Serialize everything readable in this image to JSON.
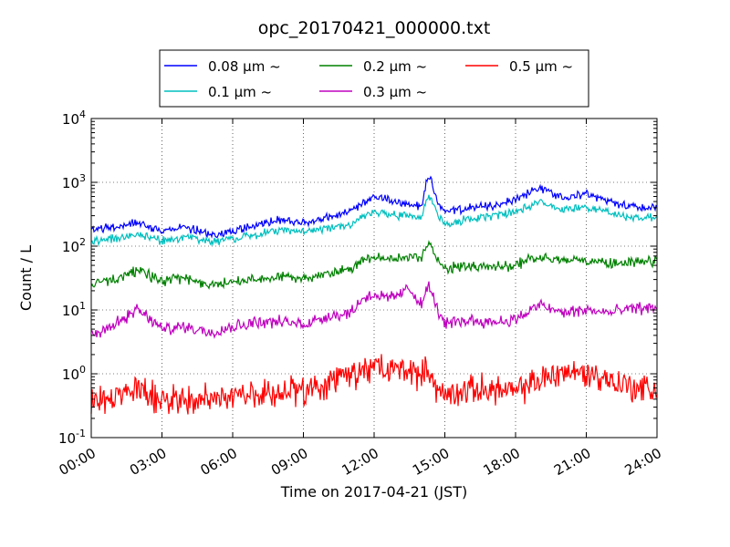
{
  "chart_data": {
    "type": "line",
    "title": "opc_20170421_000000.txt",
    "xlabel": "Time on 2017-04-21 (JST)",
    "ylabel": "Count / L",
    "y_scale": "log",
    "ylim_exponents": [
      -1,
      4
    ],
    "grid": true,
    "legend_position": "top-center",
    "x_ticks": [
      "00:00",
      "03:00",
      "06:00",
      "09:00",
      "12:00",
      "15:00",
      "18:00",
      "21:00",
      "24:00"
    ],
    "y_ticks": [
      {
        "base": "10",
        "exp": "-1"
      },
      {
        "base": "10",
        "exp": "0"
      },
      {
        "base": "10",
        "exp": "1"
      },
      {
        "base": "10",
        "exp": "2"
      },
      {
        "base": "10",
        "exp": "3"
      },
      {
        "base": "10",
        "exp": "4"
      }
    ],
    "x_hours": [
      0,
      1,
      2,
      3,
      4,
      5,
      6,
      7,
      8,
      9,
      10,
      11,
      11.5,
      12,
      12.5,
      13,
      13.5,
      14,
      14.3,
      14.7,
      15,
      16,
      17,
      18,
      19,
      20,
      21,
      22,
      23,
      24
    ],
    "series": [
      {
        "name": "0.08 μm ~",
        "color": "#0000ff",
        "noise": 0.04,
        "values": [
          180,
          200,
          240,
          170,
          200,
          150,
          170,
          210,
          260,
          230,
          280,
          350,
          450,
          600,
          550,
          480,
          450,
          420,
          1400,
          500,
          330,
          400,
          420,
          550,
          820,
          600,
          650,
          500,
          420,
          400
        ]
      },
      {
        "name": "0.1 μm ~",
        "color": "#00bfbf",
        "noise": 0.04,
        "values": [
          120,
          130,
          155,
          120,
          140,
          120,
          130,
          150,
          180,
          170,
          190,
          220,
          280,
          350,
          320,
          300,
          300,
          290,
          650,
          320,
          220,
          270,
          290,
          340,
          500,
          380,
          420,
          330,
          280,
          270
        ]
      },
      {
        "name": "0.2 μm ~",
        "color": "#008000",
        "noise": 0.05,
        "values": [
          25,
          30,
          42,
          28,
          32,
          24,
          28,
          30,
          33,
          32,
          36,
          45,
          62,
          70,
          60,
          65,
          70,
          65,
          110,
          60,
          45,
          50,
          48,
          50,
          70,
          58,
          62,
          55,
          56,
          57
        ]
      },
      {
        "name": "0.3 μm ~",
        "color": "#bf00bf",
        "noise": 0.06,
        "values": [
          4,
          6,
          10,
          5,
          5.5,
          4.5,
          5.5,
          6.5,
          6.5,
          6,
          8,
          9,
          15,
          18,
          15,
          17,
          22,
          12,
          25,
          10,
          6,
          7,
          6.5,
          7,
          12,
          9,
          10,
          9,
          10.5,
          11
        ]
      },
      {
        "name": "0.5 μm ~",
        "color": "#ff0000",
        "noise": 0.14,
        "values": [
          0.35,
          0.45,
          0.55,
          0.4,
          0.4,
          0.4,
          0.45,
          0.45,
          0.55,
          0.5,
          0.7,
          0.9,
          1.1,
          1.3,
          1.1,
          1.2,
          1.2,
          0.9,
          1.3,
          0.5,
          0.45,
          0.55,
          0.6,
          0.5,
          0.8,
          1.1,
          1.0,
          0.8,
          0.6,
          0.55
        ]
      }
    ]
  }
}
